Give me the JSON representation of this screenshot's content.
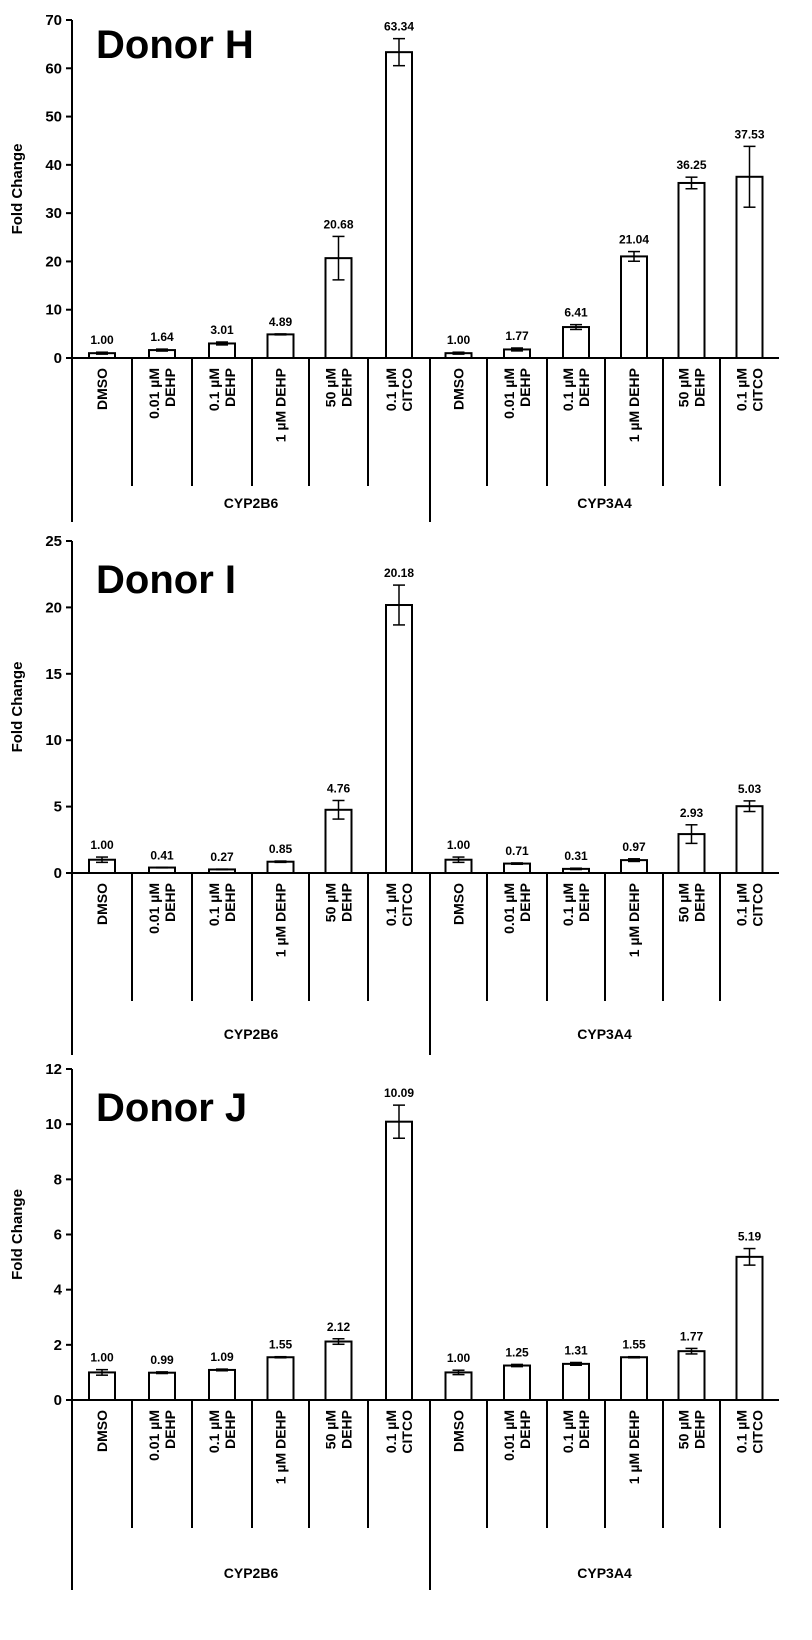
{
  "chart_data": [
    {
      "type": "bar",
      "title": "Donor H",
      "ylabel": "Fold Change",
      "ylim": [
        0,
        70
      ],
      "yticks": [
        0,
        10,
        20,
        30,
        40,
        50,
        60,
        70
      ],
      "groups": [
        "CYP2B6",
        "CYP3A4"
      ],
      "categories": [
        [
          "DMSO"
        ],
        [
          "0.01 µM",
          "DEHP"
        ],
        [
          "0.1 µM",
          "DEHP"
        ],
        [
          "1 µM DEHP"
        ],
        [
          "50 µM",
          "DEHP"
        ],
        [
          "0.1 µM",
          "CITCO"
        ]
      ],
      "series": [
        {
          "group": "CYP2B6",
          "values": [
            1.0,
            1.64,
            3.01,
            4.89,
            20.68,
            63.34
          ],
          "errors": [
            0.2,
            0.2,
            0.3,
            0.1,
            4.5,
            2.8
          ],
          "labels": [
            "1.00",
            "1.64",
            "3.01",
            "4.89",
            "20.68",
            "63.34"
          ]
        },
        {
          "group": "CYP3A4",
          "values": [
            1.0,
            1.77,
            6.41,
            21.04,
            36.25,
            37.53
          ],
          "errors": [
            0.2,
            0.3,
            0.5,
            1.0,
            1.2,
            6.3
          ],
          "labels": [
            "1.00",
            "1.77",
            "6.41",
            "21.04",
            "36.25",
            "37.53"
          ]
        }
      ]
    },
    {
      "type": "bar",
      "title": "Donor I",
      "ylabel": "Fold Change",
      "ylim": [
        0,
        25
      ],
      "yticks": [
        0,
        5,
        10,
        15,
        20,
        25
      ],
      "groups": [
        "CYP2B6",
        "CYP3A4"
      ],
      "categories": [
        [
          "DMSO"
        ],
        [
          "0.01 µM",
          "DEHP"
        ],
        [
          "0.1 µM",
          "DEHP"
        ],
        [
          "1 µM DEHP"
        ],
        [
          "50 µM",
          "DEHP"
        ],
        [
          "0.1 µM",
          "CITCO"
        ]
      ],
      "series": [
        {
          "group": "CYP2B6",
          "values": [
            1.0,
            0.41,
            0.27,
            0.85,
            4.76,
            20.18
          ],
          "errors": [
            0.2,
            0.02,
            0.02,
            0.05,
            0.7,
            1.5
          ],
          "labels": [
            "1.00",
            "0.41",
            "0.27",
            "0.85",
            "4.76",
            "20.18"
          ]
        },
        {
          "group": "CYP3A4",
          "values": [
            1.0,
            0.71,
            0.31,
            0.97,
            2.93,
            5.03
          ],
          "errors": [
            0.2,
            0.05,
            0.05,
            0.1,
            0.7,
            0.4
          ],
          "labels": [
            "1.00",
            "0.71",
            "0.31",
            "0.97",
            "2.93",
            "5.03"
          ]
        }
      ]
    },
    {
      "type": "bar",
      "title": "Donor J",
      "ylabel": "Fold Change",
      "ylim": [
        0,
        12
      ],
      "yticks": [
        0,
        2,
        4,
        6,
        8,
        10,
        12
      ],
      "groups": [
        "CYP2B6",
        "CYP3A4"
      ],
      "categories": [
        [
          "DMSO"
        ],
        [
          "0.01 µM",
          "DEHP"
        ],
        [
          "0.1 µM",
          "DEHP"
        ],
        [
          "1 µM DEHP"
        ],
        [
          "50 µM",
          "DEHP"
        ],
        [
          "0.1 µM",
          "CITCO"
        ]
      ],
      "series": [
        {
          "group": "CYP2B6",
          "values": [
            1.0,
            0.99,
            1.09,
            1.55,
            2.12,
            10.09
          ],
          "errors": [
            0.1,
            0.03,
            0.03,
            0.02,
            0.1,
            0.6
          ],
          "labels": [
            "1.00",
            "0.99",
            "1.09",
            "1.55",
            "2.12",
            "10.09"
          ]
        },
        {
          "group": "CYP3A4",
          "values": [
            1.0,
            1.25,
            1.31,
            1.55,
            1.77,
            5.19
          ],
          "errors": [
            0.08,
            0.04,
            0.05,
            0.02,
            0.1,
            0.3
          ],
          "labels": [
            "1.00",
            "1.25",
            "1.31",
            "1.55",
            "1.77",
            "5.19"
          ]
        }
      ]
    }
  ]
}
